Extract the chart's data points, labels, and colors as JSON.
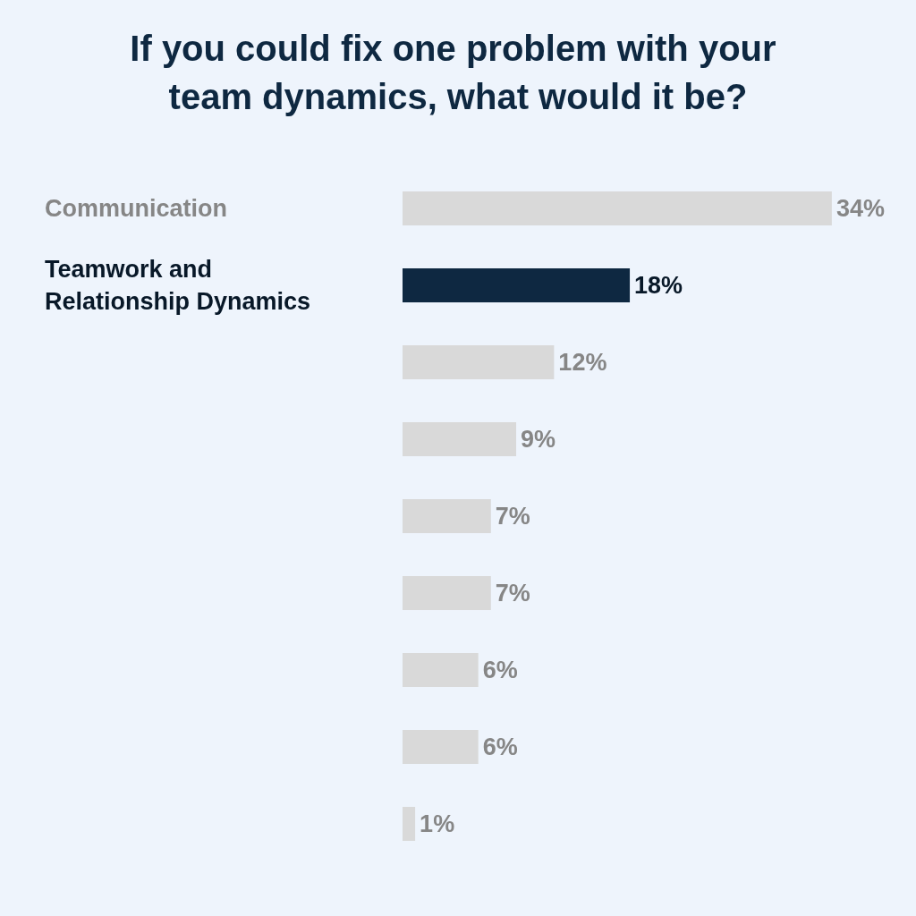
{
  "chart_data": {
    "type": "bar",
    "orientation": "horizontal",
    "title": "If you could fix one problem with your team dynamics, what would it be?",
    "categories": [
      "Communication",
      "Teamwork and Relationship Dynamics",
      null,
      null,
      null,
      null,
      null,
      null,
      null
    ],
    "values": [
      34,
      18,
      12,
      9,
      7,
      7,
      6,
      6,
      1
    ],
    "colors": [
      "#d9d9d9",
      "#0e2841",
      "#d9d9d9",
      "#d9d9d9",
      "#d9d9d9",
      "#d9d9d9",
      "#d9d9d9",
      "#d9d9d9",
      "#d9d9d9"
    ],
    "value_labels": [
      "34%",
      "18%",
      "12%",
      "9%",
      "7%",
      "7%",
      "6%",
      "6%",
      "1%"
    ]
  }
}
